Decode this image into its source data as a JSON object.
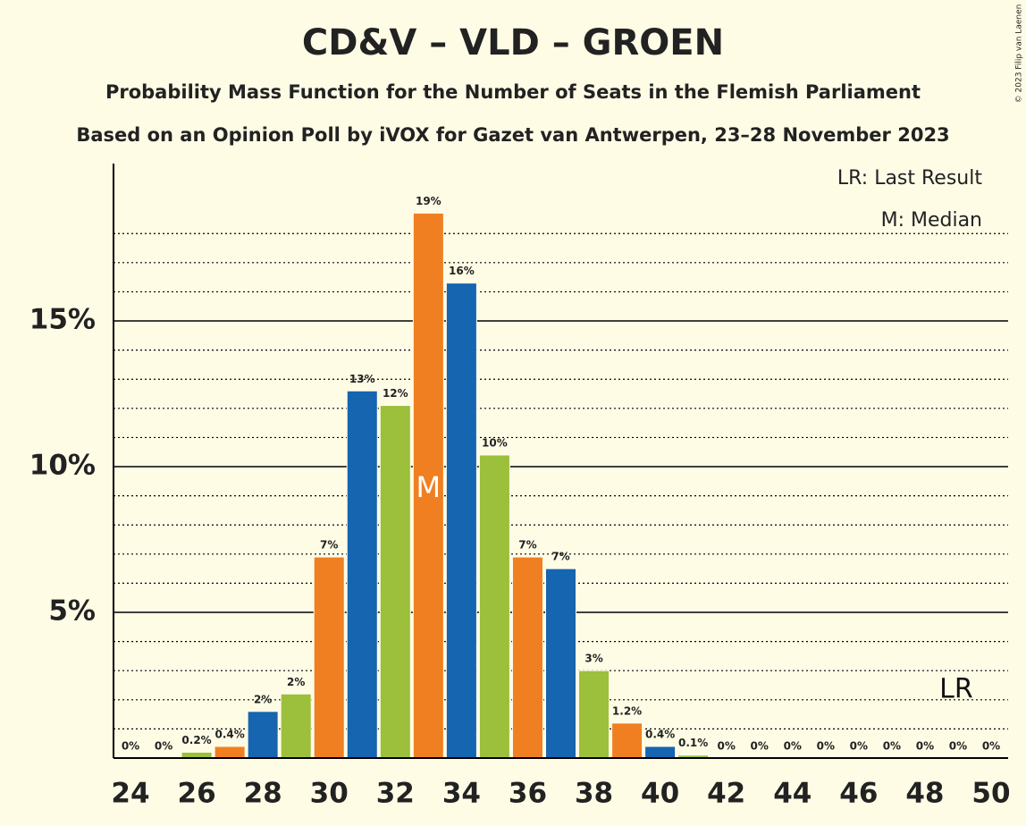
{
  "chart_data": {
    "type": "bar",
    "title": "CD&V – VLD – GROEN",
    "subtitle": "Probability Mass Function for the Number of Seats in the Flemish Parliament",
    "subtitle2": "Based on an Opinion Poll by iVOX for Gazet van Antwerpen, 23–28 November 2023",
    "copyright": "© 2023 Filip van Laenen",
    "legend": [
      "LR: Last Result",
      "M: Median"
    ],
    "categories": [
      24,
      null,
      26,
      null,
      28,
      null,
      30,
      null,
      32,
      null,
      34,
      null,
      36,
      null,
      38,
      null,
      40,
      null,
      42,
      null,
      44,
      null,
      46,
      null,
      48,
      null,
      50
    ],
    "values": [
      0,
      0,
      0.2,
      0.4,
      1.6,
      2.2,
      6.9,
      12.6,
      12.1,
      18.7,
      16.3,
      10.4,
      6.9,
      6.5,
      3.0,
      1.2,
      0.4,
      0.1,
      0,
      0,
      0,
      0,
      0,
      0,
      0,
      0,
      0
    ],
    "value_labels": [
      "0%",
      "0%",
      "0.2%",
      "0.4%",
      "2%",
      "2%",
      "7%",
      "13%",
      "12%",
      "19%",
      "16%",
      "10%",
      "7%",
      "7%",
      "3%",
      "1.2%",
      "0.4%",
      "0.1%",
      "0%",
      "0%",
      "0%",
      "0%",
      "0%",
      "0%",
      "0%",
      "0%",
      "0%"
    ],
    "colors": [
      "#f07f22",
      "#1565b0",
      "#9cbf3c",
      "#f07f22",
      "#1565b0",
      "#9cbf3c",
      "#f07f22",
      "#1565b0",
      "#9cbf3c",
      "#f07f22",
      "#1565b0",
      "#9cbf3c",
      "#f07f22",
      "#1565b0",
      "#9cbf3c",
      "#f07f22",
      "#1565b0",
      "#9cbf3c",
      "#f07f22",
      "#1565b0",
      "#9cbf3c",
      "#f07f22",
      "#1565b0",
      "#9cbf3c",
      "#f07f22",
      "#1565b0",
      "#9cbf3c"
    ],
    "annotations": [
      {
        "text": "M",
        "category_index": 9
      },
      {
        "text": "LR",
        "category_index": 25
      }
    ],
    "ylim": [
      0,
      20.4
    ],
    "yticks": [
      {
        "value": 5,
        "label": "5%"
      },
      {
        "value": 10,
        "label": "10%"
      },
      {
        "value": 15,
        "label": "15%"
      }
    ],
    "minor_yticks": [
      1,
      2,
      3,
      4,
      6,
      7,
      8,
      9,
      11,
      12,
      13,
      14,
      16,
      17,
      18
    ],
    "grid": true
  }
}
